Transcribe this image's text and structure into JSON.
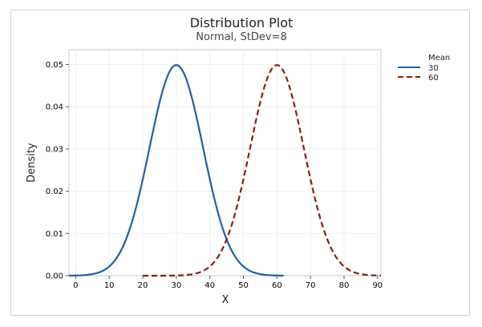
{
  "chart_data": {
    "type": "line",
    "title": "Distribution Plot",
    "subtitle": "Normal, StDev=8",
    "xlabel": "X",
    "ylabel": "Density",
    "xlim": [
      -2,
      91
    ],
    "ylim": [
      0,
      0.0535
    ],
    "x_ticks": [
      0,
      10,
      20,
      30,
      40,
      50,
      60,
      70,
      80,
      90
    ],
    "x_tick_labels": [
      "0",
      "10",
      "20",
      "30",
      "40",
      "50",
      "60",
      "70",
      "80",
      "90"
    ],
    "y_ticks": [
      0,
      0.01,
      0.02,
      0.03,
      0.04,
      0.05
    ],
    "y_tick_labels": [
      "0.00",
      "0.01",
      "0.02",
      "0.03",
      "0.04",
      "0.05"
    ],
    "grid": true,
    "legend": {
      "title": "Mean",
      "placement": "right"
    },
    "stdev": 8,
    "series": [
      {
        "name": "30",
        "mean": 30,
        "x_range": [
          -2,
          62
        ],
        "color": "#1f5fa8",
        "line_style": "solid"
      },
      {
        "name": "60",
        "mean": 60,
        "x_range": [
          20,
          91
        ],
        "color": "#8b1a1a",
        "line_style": "dashed"
      }
    ]
  }
}
